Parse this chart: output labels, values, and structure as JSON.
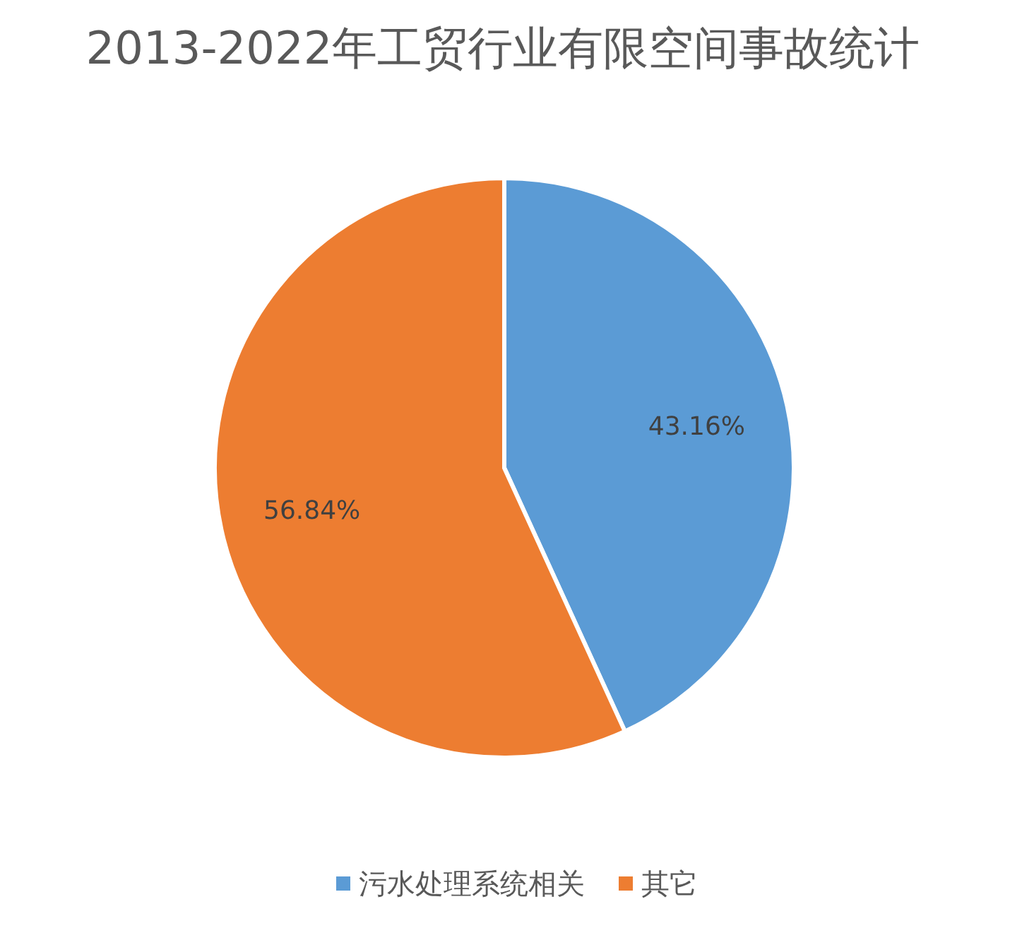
{
  "chart_data": {
    "type": "pie",
    "title": "2013-2022年工贸行业有限空间事故统计",
    "categories": [
      "污水处理系统相关",
      "其它"
    ],
    "values": [
      43.16,
      56.84
    ],
    "colors": [
      "#5b9bd5",
      "#ed7d31"
    ],
    "value_labels": [
      "43.16%",
      "56.84%"
    ],
    "legend": "bottom"
  }
}
